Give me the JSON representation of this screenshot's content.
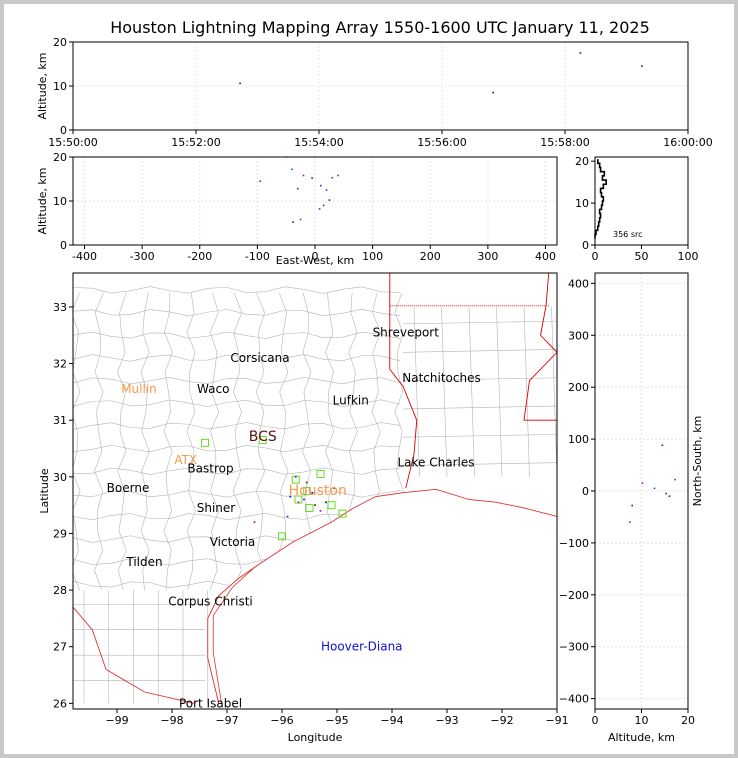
{
  "title": "Houston Lightning Mapping Array 1550-1600 UTC January 11, 2025",
  "colors": {
    "frame": "#c8c8c8",
    "state_border": "#d40000",
    "county": "#b4b4b4",
    "coast": "#e03030",
    "station": "#66dd22",
    "accent_orange": "#f59a4a",
    "hoover_diana": "#1010dd"
  },
  "chart_data": [
    {
      "id": "time-altitude",
      "type": "scatter",
      "title": "Houston Lightning Mapping Array 1550-1600 UTC January 11, 2025",
      "xlabel": "",
      "ylabel": "Altitude, km",
      "x_ticks": [
        "15:50:00",
        "15:52:00",
        "15:54:00",
        "15:56:00",
        "15:58:00",
        "16:00:00"
      ],
      "xlim": [
        "15:50:00",
        "16:00:00"
      ],
      "ylim": [
        0,
        20
      ],
      "y_ticks": [
        0,
        10,
        20
      ],
      "grid": true,
      "points": [
        {
          "x": "15:52:43",
          "y": 10.6
        },
        {
          "x": "15:56:50",
          "y": 8.5
        },
        {
          "x": "15:58:15",
          "y": 17.5
        },
        {
          "x": "15:59:15",
          "y": 14.5
        }
      ]
    },
    {
      "id": "ew-altitude",
      "type": "scatter",
      "xlabel": "East-West, km",
      "ylabel": "Altitude, km",
      "xlim": [
        -420,
        420
      ],
      "ylim": [
        0,
        20
      ],
      "x_ticks": [
        -400,
        -300,
        -200,
        -100,
        0,
        100,
        200,
        300,
        400
      ],
      "y_ticks": [
        0,
        10,
        20
      ],
      "grid": true,
      "points": [
        {
          "x": -95,
          "y": 14.5
        },
        {
          "x": -40,
          "y": 17.2
        },
        {
          "x": -20,
          "y": 15.8
        },
        {
          "x": -5,
          "y": 15.2
        },
        {
          "x": 10,
          "y": 13.5
        },
        {
          "x": 20,
          "y": 12.5
        },
        {
          "x": 30,
          "y": 15.3
        },
        {
          "x": 25,
          "y": 10.2
        },
        {
          "x": 15,
          "y": 9.0
        },
        {
          "x": 8,
          "y": 8.2
        },
        {
          "x": -25,
          "y": 5.8
        },
        {
          "x": -38,
          "y": 5.2
        },
        {
          "x": -50,
          "y": 20
        },
        {
          "x": 0,
          "y": 20
        },
        {
          "x": 40,
          "y": 15.8
        },
        {
          "x": -30,
          "y": 12.8
        }
      ]
    },
    {
      "id": "altitude-histogram",
      "type": "bar",
      "annotation": "356 src",
      "xlim": [
        0,
        100
      ],
      "ylim": [
        0,
        21
      ],
      "x_ticks": [
        0,
        50,
        100
      ],
      "y_ticks": [
        0,
        10,
        20
      ],
      "altitude_bins": [
        2,
        3,
        4,
        5,
        6,
        7,
        8,
        9,
        10,
        11,
        12,
        13,
        14,
        15,
        16,
        17,
        18,
        19,
        20
      ],
      "values": [
        0,
        1,
        3,
        4,
        5,
        6,
        5,
        7,
        8,
        9,
        7,
        6,
        9,
        12,
        8,
        10,
        6,
        5,
        3
      ]
    },
    {
      "id": "plan-view-map",
      "type": "scatter",
      "xlabel": "Longitude",
      "ylabel": "Latitude",
      "xlim": [
        -99.8,
        -91.0
      ],
      "ylim": [
        25.9,
        33.6
      ],
      "x_ticks": [
        -99,
        -98,
        -97,
        -96,
        -95,
        -94,
        -93,
        -92,
        -91
      ],
      "y_ticks": [
        26,
        27,
        28,
        29,
        30,
        31,
        32,
        33
      ],
      "city_labels": [
        {
          "name": "Shreveport",
          "lon": -93.75,
          "lat": 32.55
        },
        {
          "name": "Corsicana",
          "lon": -96.4,
          "lat": 32.1
        },
        {
          "name": "Natchitoches",
          "lon": -93.1,
          "lat": 31.75
        },
        {
          "name": "Mullin",
          "lon": -98.6,
          "lat": 31.55
        },
        {
          "name": "Waco",
          "lon": -97.25,
          "lat": 31.55
        },
        {
          "name": "Lufkin",
          "lon": -94.75,
          "lat": 31.35
        },
        {
          "name": "BCS",
          "lon": -96.35,
          "lat": 30.7
        },
        {
          "name": "ATX",
          "lon": -97.75,
          "lat": 30.3
        },
        {
          "name": "Bastrop",
          "lon": -97.3,
          "lat": 30.15
        },
        {
          "name": "Lake Charles",
          "lon": -93.2,
          "lat": 30.25
        },
        {
          "name": "Boerne",
          "lon": -98.8,
          "lat": 29.8
        },
        {
          "name": "Houston",
          "lon": -95.35,
          "lat": 29.75
        },
        {
          "name": "Shiner",
          "lon": -97.2,
          "lat": 29.45
        },
        {
          "name": "Victoria",
          "lon": -96.9,
          "lat": 28.85
        },
        {
          "name": "Tilden",
          "lon": -98.5,
          "lat": 28.5
        },
        {
          "name": "Corpus Christi",
          "lon": -97.3,
          "lat": 27.8
        },
        {
          "name": "Hoover-Diana",
          "lon": -94.55,
          "lat": 27.0
        },
        {
          "name": "Port Isabel",
          "lon": -97.3,
          "lat": 26.0
        }
      ],
      "stations": [
        {
          "lon": -97.4,
          "lat": 30.6
        },
        {
          "lon": -96.35,
          "lat": 30.65
        },
        {
          "lon": -95.3,
          "lat": 30.05
        },
        {
          "lon": -95.75,
          "lat": 29.95
        },
        {
          "lon": -95.55,
          "lat": 29.75
        },
        {
          "lon": -95.7,
          "lat": 29.6
        },
        {
          "lon": -95.5,
          "lat": 29.45
        },
        {
          "lon": -94.9,
          "lat": 29.35
        },
        {
          "lon": -95.1,
          "lat": 29.5
        },
        {
          "lon": -96.0,
          "lat": 28.95
        }
      ],
      "points": [
        {
          "lon": -95.85,
          "lat": 29.65
        },
        {
          "lon": -95.7,
          "lat": 29.55
        },
        {
          "lon": -95.6,
          "lat": 29.6
        },
        {
          "lon": -95.4,
          "lat": 29.5
        },
        {
          "lon": -95.45,
          "lat": 29.72
        },
        {
          "lon": -95.3,
          "lat": 29.4
        },
        {
          "lon": -95.75,
          "lat": 30.0
        },
        {
          "lon": -95.55,
          "lat": 29.9
        },
        {
          "lon": -95.2,
          "lat": 29.55
        },
        {
          "lon": -96.5,
          "lat": 29.2
        },
        {
          "lon": -95.9,
          "lat": 29.3
        },
        {
          "lon": -95.05,
          "lat": 29.8
        }
      ]
    },
    {
      "id": "altitude-northsouth",
      "type": "scatter",
      "xlabel": "Altitude, km",
      "ylabel": "North-South, km",
      "xlim": [
        0,
        20
      ],
      "ylim": [
        -420,
        420
      ],
      "x_ticks": [
        0,
        10,
        20
      ],
      "y_ticks": [
        -400,
        -300,
        -200,
        -100,
        0,
        100,
        200,
        300,
        400
      ],
      "grid": true,
      "points": [
        {
          "x": 14.5,
          "y": 88
        },
        {
          "x": 10.2,
          "y": 15
        },
        {
          "x": 17.2,
          "y": 22
        },
        {
          "x": 15.3,
          "y": -5
        },
        {
          "x": 8.0,
          "y": -28
        },
        {
          "x": 7.5,
          "y": -60
        },
        {
          "x": 12.8,
          "y": 5
        },
        {
          "x": 16.0,
          "y": -10
        }
      ]
    }
  ]
}
